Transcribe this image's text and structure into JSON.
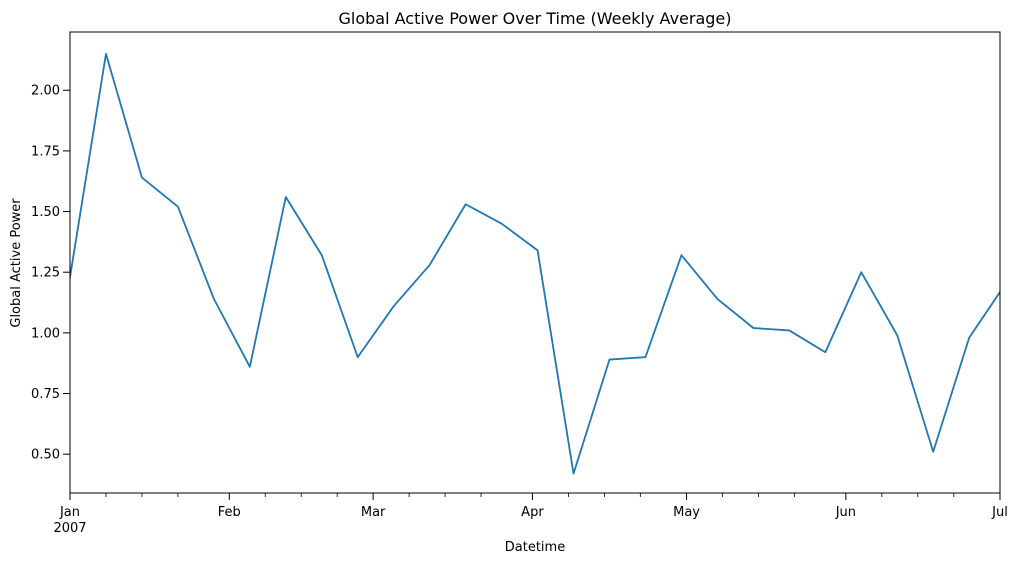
{
  "chart_data": {
    "type": "line",
    "title": "Global Active Power Over Time (Weekly Average)",
    "xlabel": "Datetime",
    "ylabel": "Global Active Power",
    "x_axis_type": "date",
    "xlim": [
      "2007-01-01",
      "2007-07-01"
    ],
    "ylim": [
      0.34,
      2.24
    ],
    "grid": false,
    "legend": "none",
    "line_color": "#1f77b4",
    "x_major_ticks": [
      {
        "date": "2007-01-01",
        "label": "Jan",
        "sublabel": "2007"
      },
      {
        "date": "2007-02-01",
        "label": "Feb",
        "sublabel": ""
      },
      {
        "date": "2007-03-01",
        "label": "Mar",
        "sublabel": ""
      },
      {
        "date": "2007-04-01",
        "label": "Apr",
        "sublabel": ""
      },
      {
        "date": "2007-05-01",
        "label": "May",
        "sublabel": ""
      },
      {
        "date": "2007-06-01",
        "label": "Jun",
        "sublabel": ""
      },
      {
        "date": "2007-07-01",
        "label": "Jul",
        "sublabel": ""
      }
    ],
    "x_minor_ticks": [
      "2007-01-08",
      "2007-01-15",
      "2007-01-22",
      "2007-02-08",
      "2007-02-15",
      "2007-02-22",
      "2007-03-08",
      "2007-03-15",
      "2007-03-22",
      "2007-04-08",
      "2007-04-15",
      "2007-04-22",
      "2007-05-08",
      "2007-05-15",
      "2007-05-22",
      "2007-06-08",
      "2007-06-15",
      "2007-06-22"
    ],
    "y_ticks": [
      "0.50",
      "0.75",
      "1.00",
      "1.25",
      "1.50",
      "1.75",
      "2.00"
    ],
    "series": [
      {
        "x": [
          "2007-01-01",
          "2007-01-08",
          "2007-01-15",
          "2007-01-22",
          "2007-01-29",
          "2007-02-05",
          "2007-02-12",
          "2007-02-19",
          "2007-02-26",
          "2007-03-05",
          "2007-03-12",
          "2007-03-19",
          "2007-03-26",
          "2007-04-02",
          "2007-04-09",
          "2007-04-16",
          "2007-04-23",
          "2007-04-30",
          "2007-05-07",
          "2007-05-14",
          "2007-05-21",
          "2007-05-28",
          "2007-06-04",
          "2007-06-11",
          "2007-06-18",
          "2007-06-25",
          "2007-07-02"
        ],
        "y": [
          1.23,
          2.15,
          1.64,
          1.52,
          1.14,
          0.86,
          1.56,
          1.32,
          0.9,
          1.11,
          1.28,
          1.53,
          1.45,
          1.34,
          0.42,
          0.89,
          0.9,
          1.32,
          1.14,
          1.02,
          1.01,
          0.92,
          1.25,
          0.99,
          0.51,
          0.98,
          1.2
        ]
      }
    ]
  }
}
